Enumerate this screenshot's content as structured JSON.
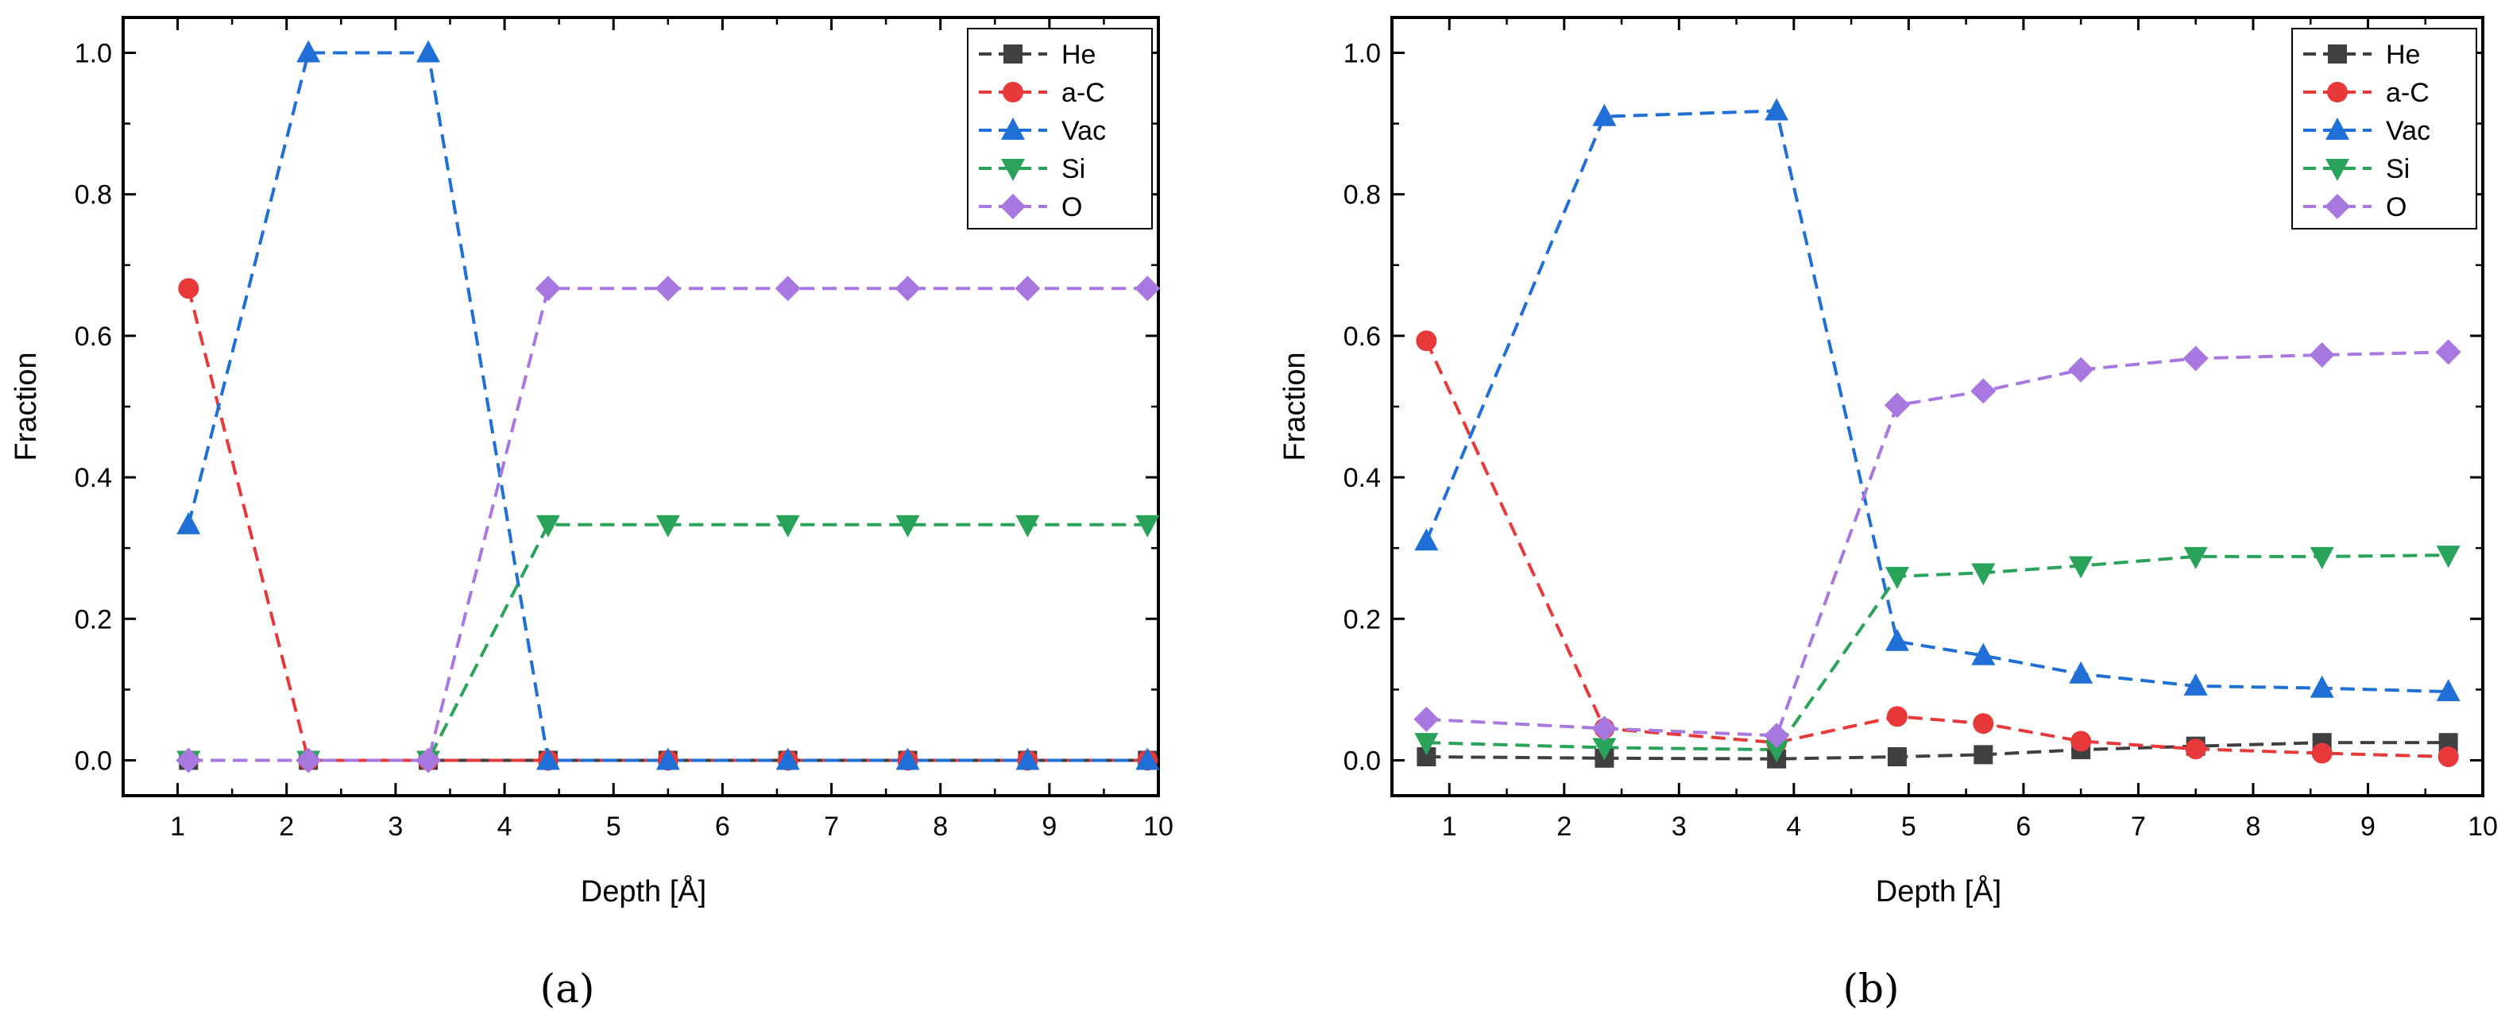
{
  "chart_data": [
    {
      "panel_label": "(a)",
      "type": "line",
      "xlabel": "Depth [Å]",
      "ylabel": "Fraction",
      "xlim": [
        0.5,
        10
      ],
      "ylim": [
        -0.05,
        1.05
      ],
      "xticks": [
        1,
        2,
        3,
        4,
        5,
        6,
        7,
        8,
        9,
        10
      ],
      "yticks": [
        0.0,
        0.2,
        0.4,
        0.6,
        0.8,
        1.0
      ],
      "legend_position": "top-right",
      "x": [
        1.1,
        2.2,
        3.3,
        4.4,
        5.5,
        6.6,
        7.7,
        8.8,
        9.9
      ],
      "series": [
        {
          "name": "He",
          "color": "#404040",
          "marker": "square",
          "values": [
            0,
            0,
            0,
            0,
            0,
            0,
            0,
            0,
            0
          ]
        },
        {
          "name": "a-C",
          "color": "#e8393a",
          "marker": "circle",
          "values": [
            0.667,
            0,
            0,
            0,
            0,
            0,
            0,
            0,
            0
          ]
        },
        {
          "name": "Vac",
          "color": "#1f6fd6",
          "marker": "triangle-up",
          "values": [
            0.333,
            1.0,
            1.0,
            0,
            0,
            0,
            0,
            0,
            0
          ]
        },
        {
          "name": "Si",
          "color": "#2aa35a",
          "marker": "triangle-down",
          "values": [
            0,
            0,
            0,
            0.333,
            0.333,
            0.333,
            0.333,
            0.333,
            0.333
          ]
        },
        {
          "name": "O",
          "color": "#a878e0",
          "marker": "diamond",
          "values": [
            0,
            0,
            0,
            0.667,
            0.667,
            0.667,
            0.667,
            0.667,
            0.667
          ]
        }
      ]
    },
    {
      "panel_label": "(b)",
      "type": "line",
      "xlabel": "Depth [Å]",
      "ylabel": "Fraction",
      "xlim": [
        0.5,
        10
      ],
      "ylim": [
        -0.05,
        1.05
      ],
      "xticks": [
        1,
        2,
        3,
        4,
        5,
        6,
        7,
        8,
        9,
        10
      ],
      "yticks": [
        0.0,
        0.2,
        0.4,
        0.6,
        0.8,
        1.0
      ],
      "legend_position": "top-right",
      "x": [
        0.8,
        2.35,
        3.85,
        4.9,
        5.65,
        6.5,
        7.5,
        8.6,
        9.7
      ],
      "series": [
        {
          "name": "He",
          "color": "#404040",
          "marker": "square",
          "values": [
            0.005,
            0.003,
            0.002,
            0.005,
            0.008,
            0.015,
            0.02,
            0.025,
            0.025
          ]
        },
        {
          "name": "a-C",
          "color": "#e8393a",
          "marker": "circle",
          "values": [
            0.593,
            0.045,
            0.025,
            0.062,
            0.052,
            0.027,
            0.016,
            0.01,
            0.005
          ]
        },
        {
          "name": "Vac",
          "color": "#1f6fd6",
          "marker": "triangle-up",
          "values": [
            0.31,
            0.91,
            0.918,
            0.168,
            0.148,
            0.122,
            0.105,
            0.102,
            0.097
          ]
        },
        {
          "name": "Si",
          "color": "#2aa35a",
          "marker": "triangle-down",
          "values": [
            0.025,
            0.018,
            0.015,
            0.26,
            0.265,
            0.275,
            0.288,
            0.288,
            0.29
          ]
        },
        {
          "name": "O",
          "color": "#a878e0",
          "marker": "diamond",
          "values": [
            0.058,
            0.045,
            0.035,
            0.502,
            0.522,
            0.552,
            0.568,
            0.573,
            0.577
          ]
        }
      ]
    }
  ]
}
